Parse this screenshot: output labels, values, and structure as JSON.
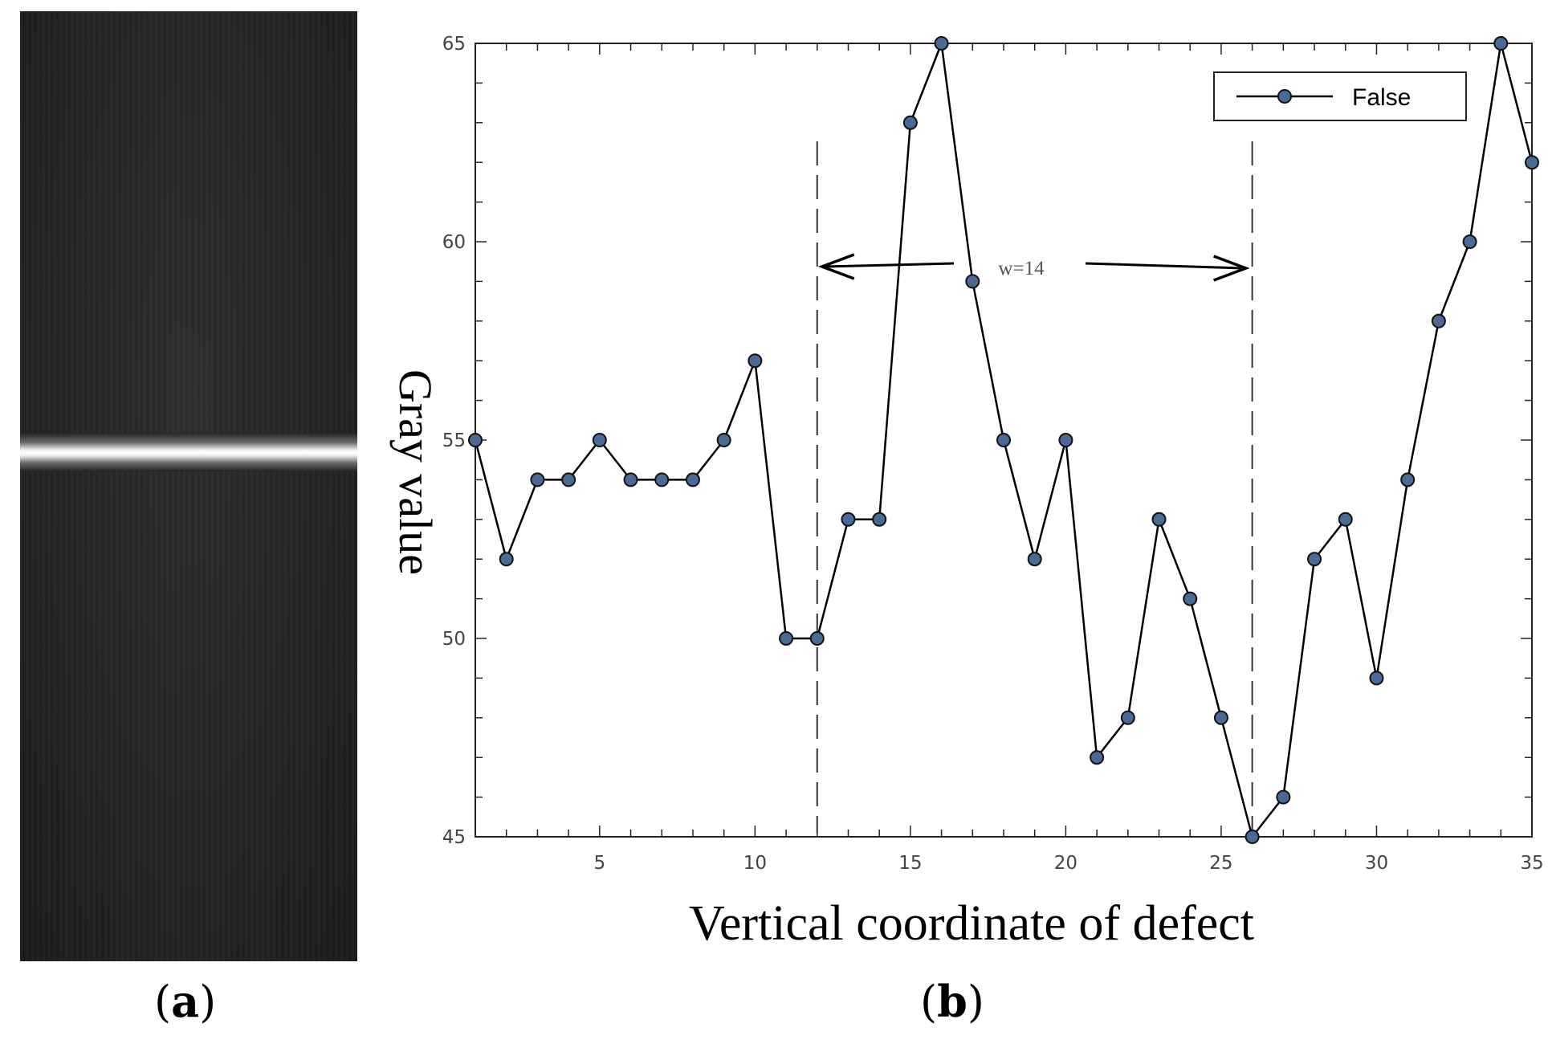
{
  "panels": {
    "a_label": "a",
    "b_label": "b"
  },
  "chart_data": {
    "type": "line",
    "xlabel": "Vertical coordinate of defect",
    "ylabel": "Gray value",
    "xlim": [
      1,
      35
    ],
    "ylim": [
      45,
      65
    ],
    "x_ticks": [
      5,
      10,
      15,
      20,
      25,
      30,
      35
    ],
    "y_ticks": [
      45,
      50,
      55,
      60,
      65
    ],
    "legend_position": "top-right",
    "series": [
      {
        "name": "False",
        "x": [
          1,
          2,
          3,
          4,
          5,
          6,
          7,
          8,
          9,
          10,
          11,
          12,
          13,
          14,
          15,
          16,
          17,
          18,
          19,
          20,
          21,
          22,
          23,
          24,
          25,
          26,
          27,
          28,
          29,
          30,
          31,
          32,
          33,
          34,
          35
        ],
        "values": [
          55,
          52,
          54,
          54,
          55,
          54,
          54,
          54,
          55,
          57,
          50,
          50,
          53,
          53,
          63,
          65,
          59,
          55,
          52,
          55,
          47,
          48,
          53,
          51,
          48,
          45,
          46,
          52,
          53,
          49,
          54,
          58,
          60,
          65,
          62
        ],
        "color": "#000000",
        "marker_fill": "#4a6a96"
      }
    ],
    "annotations": {
      "width_label": "w=14",
      "dashed_lines_x": [
        12,
        26
      ]
    }
  }
}
